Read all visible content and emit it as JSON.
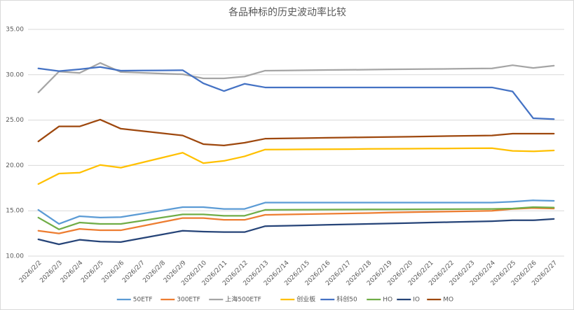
{
  "chart_data": {
    "type": "line",
    "title": "各品种标的历史波动率比较",
    "categories": [
      "2026/2/2",
      "2026/2/3",
      "2026/2/4",
      "2026/2/5",
      "2026/2/6",
      "2026/2/7",
      "2026/2/8",
      "2026/2/9",
      "2026/2/10",
      "2026/2/11",
      "2026/2/12",
      "2026/2/13",
      "2026/2/14",
      "2026/2/15",
      "2026/2/16",
      "2026/2/17",
      "2026/2/18",
      "2026/2/19",
      "2026/2/20",
      "2026/2/21",
      "2026/2/22",
      "2026/2/23",
      "2026/2/24",
      "2026/2/25",
      "2026/2/26",
      "2026/2/27"
    ],
    "series": [
      {
        "name": "50ETF",
        "color": "#5b9bd5",
        "values": [
          15.1,
          13.55,
          14.4,
          14.25,
          14.3,
          14.67,
          15.03,
          15.4,
          15.4,
          15.2,
          15.2,
          15.9,
          15.9,
          15.9,
          15.9,
          15.9,
          15.9,
          15.9,
          15.9,
          15.9,
          15.9,
          15.9,
          15.9,
          16.0,
          16.15,
          16.1
        ]
      },
      {
        "name": "300ETF",
        "color": "#ed7d31",
        "values": [
          12.8,
          12.5,
          13.0,
          12.85,
          12.85,
          13.3,
          13.75,
          14.2,
          14.2,
          14.0,
          14.0,
          14.55,
          14.59,
          14.63,
          14.67,
          14.71,
          14.75,
          14.8,
          14.84,
          14.88,
          14.92,
          14.96,
          15.0,
          15.2,
          15.3,
          15.25
        ]
      },
      {
        "name": "上海500ETF",
        "color": "#a5a5a5",
        "values": [
          28.05,
          30.35,
          30.2,
          31.3,
          30.3,
          30.22,
          30.13,
          30.05,
          29.6,
          29.6,
          29.8,
          30.45,
          30.47,
          30.5,
          30.52,
          30.54,
          30.56,
          30.59,
          30.61,
          30.63,
          30.65,
          30.68,
          30.7,
          31.05,
          30.75,
          31.0
        ]
      },
      {
        "name": "创业板",
        "color": "#ffc000",
        "values": [
          17.95,
          19.1,
          19.2,
          20.05,
          19.75,
          20.3,
          20.85,
          21.4,
          20.25,
          20.5,
          21.0,
          21.75,
          21.76,
          21.78,
          21.79,
          21.8,
          21.82,
          21.83,
          21.84,
          21.86,
          21.87,
          21.89,
          21.9,
          21.6,
          21.55,
          21.65
        ]
      },
      {
        "name": "科创50",
        "color": "#4472c4",
        "values": [
          30.7,
          30.4,
          30.6,
          30.85,
          30.45,
          30.47,
          30.48,
          30.5,
          29.05,
          28.2,
          29.0,
          28.6,
          28.6,
          28.6,
          28.6,
          28.6,
          28.6,
          28.6,
          28.6,
          28.6,
          28.6,
          28.6,
          28.6,
          28.15,
          25.2,
          25.1
        ]
      },
      {
        "name": "HO",
        "color": "#70ad47",
        "values": [
          14.25,
          12.95,
          13.7,
          13.55,
          13.55,
          13.9,
          14.25,
          14.6,
          14.6,
          14.45,
          14.45,
          15.1,
          15.11,
          15.12,
          15.13,
          15.14,
          15.15,
          15.15,
          15.16,
          15.17,
          15.18,
          15.19,
          15.2,
          15.25,
          15.4,
          15.35
        ]
      },
      {
        "name": "IO",
        "color": "#264478",
        "values": [
          11.85,
          11.3,
          11.8,
          11.6,
          11.55,
          11.97,
          12.38,
          12.8,
          12.7,
          12.65,
          12.65,
          13.3,
          13.35,
          13.4,
          13.45,
          13.5,
          13.55,
          13.6,
          13.65,
          13.7,
          13.75,
          13.8,
          13.85,
          13.95,
          13.95,
          14.1
        ]
      },
      {
        "name": "MO",
        "color": "#9e480e",
        "values": [
          22.65,
          24.3,
          24.3,
          25.05,
          24.05,
          23.8,
          23.55,
          23.3,
          22.35,
          22.2,
          22.5,
          22.95,
          22.98,
          23.01,
          23.05,
          23.08,
          23.11,
          23.14,
          23.17,
          23.2,
          23.24,
          23.27,
          23.3,
          23.5,
          23.5,
          23.5
        ]
      }
    ],
    "ylim": [
      10,
      35
    ],
    "yticks": [
      {
        "value": 10,
        "label": "10.00"
      },
      {
        "value": 15,
        "label": "15.00"
      },
      {
        "value": 20,
        "label": "20.00"
      },
      {
        "value": 25,
        "label": "25.00"
      },
      {
        "value": 30,
        "label": "30.00"
      },
      {
        "value": 35,
        "label": "35.00"
      }
    ],
    "grid": true,
    "legend": "bottom"
  }
}
